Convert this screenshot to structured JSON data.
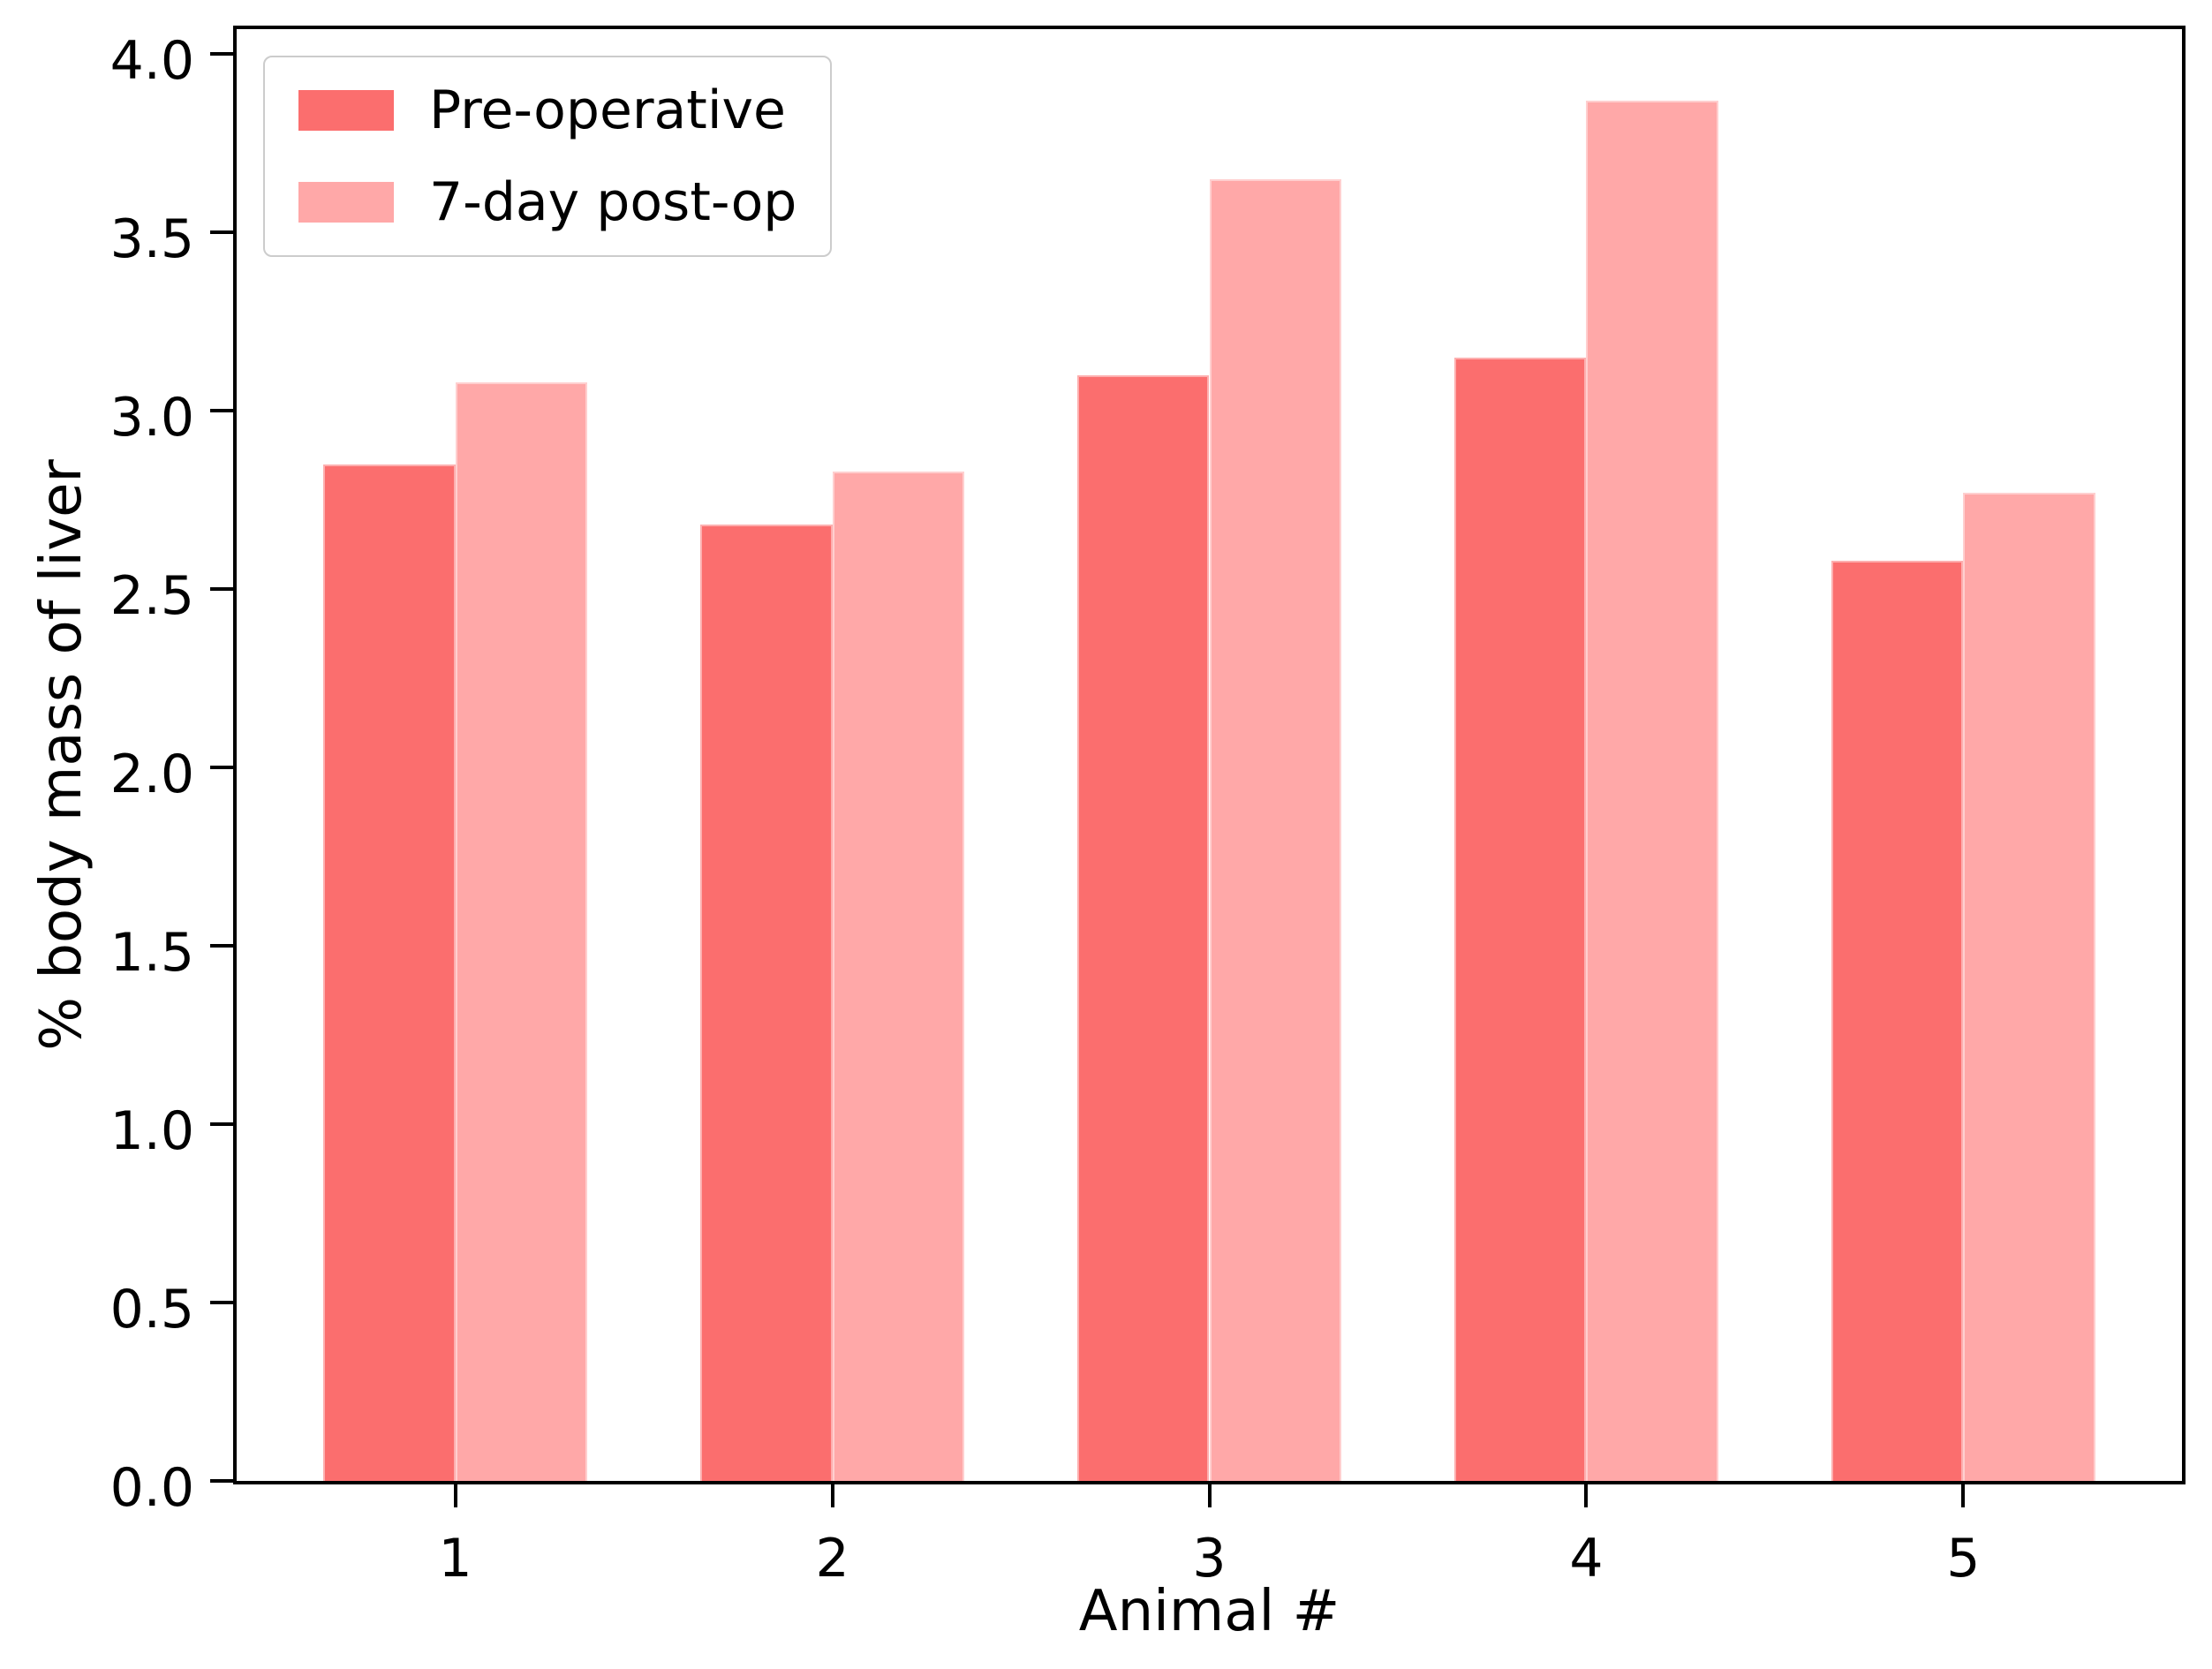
{
  "chart_data": {
    "type": "bar",
    "title": "",
    "xlabel": "Animal #",
    "ylabel": "% body mass of liver",
    "categories": [
      "1",
      "2",
      "3",
      "4",
      "5"
    ],
    "series": [
      {
        "name": "Pre-operative",
        "color": "#FB6E6E",
        "values": [
          2.85,
          2.68,
          3.1,
          3.15,
          2.58
        ]
      },
      {
        "name": "7-day post-op",
        "color": "#FFA8A8",
        "values": [
          3.08,
          2.83,
          3.65,
          3.87,
          2.77
        ]
      }
    ],
    "bar_width": 0.35,
    "xlim": [
      0.42,
      5.58
    ],
    "ylim": [
      0,
      4.07
    ],
    "yticks": [
      "0.0",
      "0.5",
      "1.0",
      "1.5",
      "2.0",
      "2.5",
      "3.0",
      "3.5",
      "4.0"
    ],
    "grid": false,
    "legend_position": "upper left",
    "axis_color": "#000000",
    "background_color": "#ffffff"
  }
}
